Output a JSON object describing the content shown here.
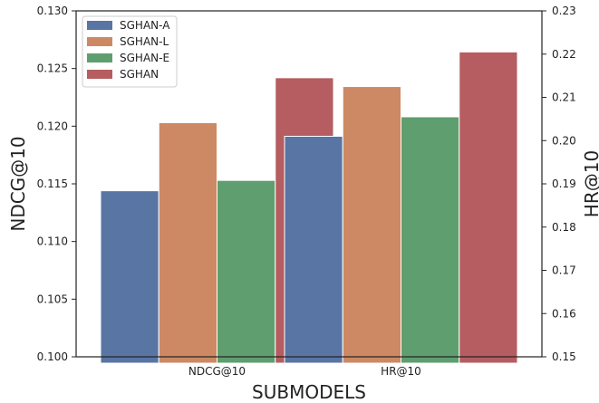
{
  "chart_data": {
    "type": "bar",
    "title": "",
    "xlabel": "SUBMODELS",
    "ylabel": "NDCG@10",
    "y2label": "HR@10",
    "categories": [
      "NDCG@10",
      "HR@10"
    ],
    "ylim": [
      0.1,
      0.13
    ],
    "y2lim": [
      0.15,
      0.23
    ],
    "yticks": [
      "0.100",
      "0.105",
      "0.110",
      "0.115",
      "0.120",
      "0.125",
      "0.130"
    ],
    "y2ticks": [
      "0.15",
      "0.16",
      "0.17",
      "0.18",
      "0.19",
      "0.20",
      "0.21",
      "0.22",
      "0.23"
    ],
    "legend_position": "top-left",
    "grid": false,
    "series": [
      {
        "name": "SGHAN-A",
        "color": "#5875a4",
        "values": [
          0.1144,
          0.201
        ]
      },
      {
        "name": "SGHAN-L",
        "color": "#cc8963",
        "values": [
          0.1203,
          0.2125
        ]
      },
      {
        "name": "SGHAN-E",
        "color": "#5f9e6e",
        "values": [
          0.1153,
          0.2055
        ]
      },
      {
        "name": "SGHAN",
        "color": "#b55d60",
        "values": [
          0.1242,
          0.2205
        ]
      }
    ],
    "axes_for_category": [
      "left",
      "right"
    ]
  }
}
